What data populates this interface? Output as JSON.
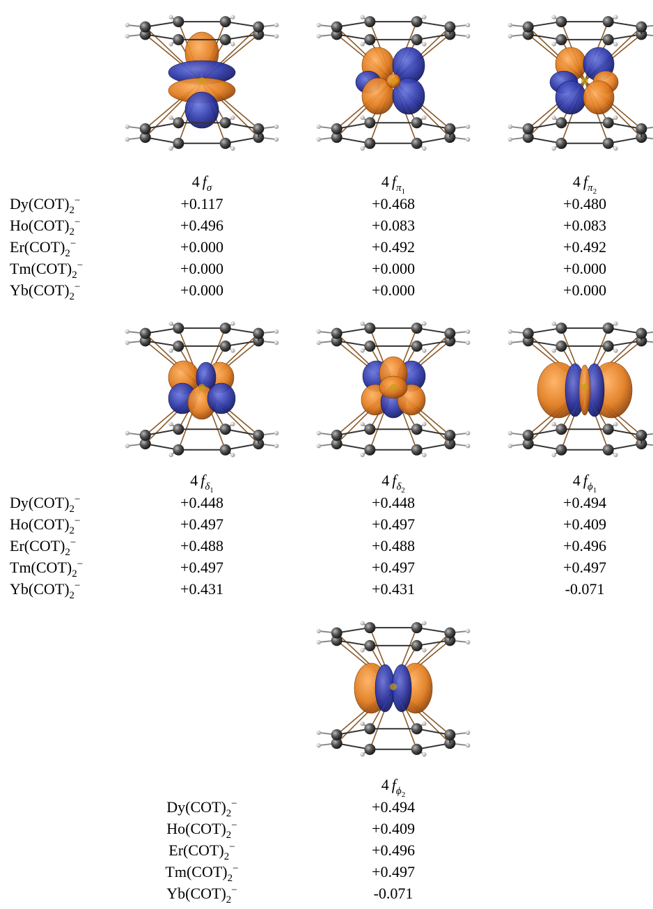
{
  "complexes": [
    {
      "name": "Dy(COT)",
      "sub": "2",
      "sup": "−"
    },
    {
      "name": "Ho(COT)",
      "sub": "2",
      "sup": "−"
    },
    {
      "name": "Er(COT)",
      "sub": "2",
      "sup": "−"
    },
    {
      "name": "Tm(COT)",
      "sub": "2",
      "sup": "−"
    },
    {
      "name": "Yb(COT)",
      "sub": "2",
      "sup": "−"
    }
  ],
  "orbitals": [
    {
      "label": {
        "prefix": "4",
        "symbol": "f",
        "sub": "σ"
      },
      "values": [
        "+0.117",
        "+0.496",
        "+0.000",
        "+0.000",
        "+0.000"
      ]
    },
    {
      "label": {
        "prefix": "4",
        "symbol": "f",
        "sub": "π",
        "index": "1"
      },
      "values": [
        "+0.468",
        "+0.083",
        "+0.492",
        "+0.000",
        "+0.000"
      ]
    },
    {
      "label": {
        "prefix": "4",
        "symbol": "f",
        "sub": "π",
        "index": "2"
      },
      "values": [
        "+0.480",
        "+0.083",
        "+0.492",
        "+0.000",
        "+0.000"
      ]
    },
    {
      "label": {
        "prefix": "4",
        "symbol": "f",
        "sub": "δ",
        "index": "1"
      },
      "values": [
        "+0.448",
        "+0.497",
        "+0.488",
        "+0.497",
        "+0.431"
      ]
    },
    {
      "label": {
        "prefix": "4",
        "symbol": "f",
        "sub": "δ",
        "index": "2"
      },
      "values": [
        "+0.448",
        "+0.497",
        "+0.488",
        "+0.497",
        "+0.431"
      ]
    },
    {
      "label": {
        "prefix": "4",
        "symbol": "f",
        "sub": "ϕ",
        "index": "1"
      },
      "values": [
        "+0.494",
        "+0.409",
        "+0.496",
        "+0.497",
        "-0.071"
      ]
    },
    {
      "label": {
        "prefix": "4",
        "symbol": "f",
        "sub": "ϕ",
        "index": "2"
      },
      "values": [
        "+0.494",
        "+0.409",
        "+0.496",
        "+0.497",
        "-0.071"
      ]
    }
  ]
}
